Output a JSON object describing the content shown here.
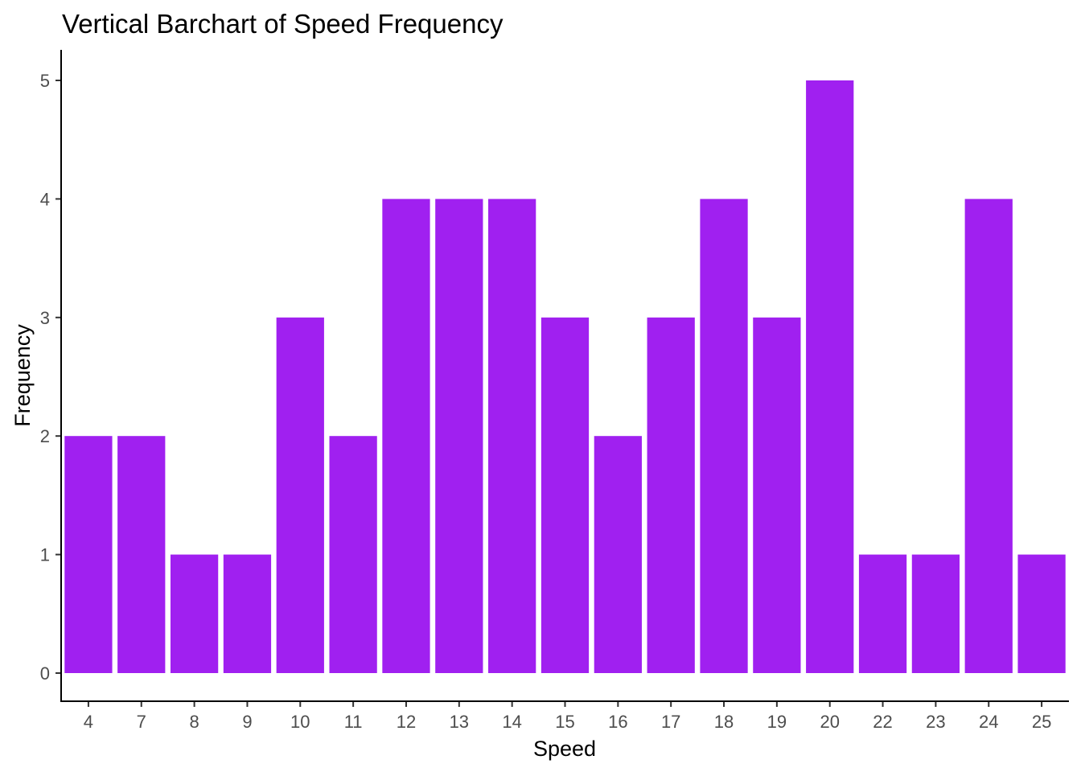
{
  "chart_data": {
    "type": "bar",
    "title": "Vertical Barchart of Speed Frequency",
    "xlabel": "Speed",
    "ylabel": "Frequency",
    "categories": [
      "4",
      "7",
      "8",
      "9",
      "10",
      "11",
      "12",
      "13",
      "14",
      "15",
      "16",
      "17",
      "18",
      "19",
      "20",
      "22",
      "23",
      "24",
      "25"
    ],
    "values": [
      2,
      2,
      1,
      1,
      3,
      2,
      4,
      4,
      4,
      3,
      2,
      3,
      4,
      3,
      5,
      1,
      1,
      4,
      1
    ],
    "ylim": [
      0,
      5
    ],
    "yticks": [
      0,
      1,
      2,
      3,
      4,
      5
    ],
    "grid": false,
    "bar_color": "#A020F0"
  }
}
